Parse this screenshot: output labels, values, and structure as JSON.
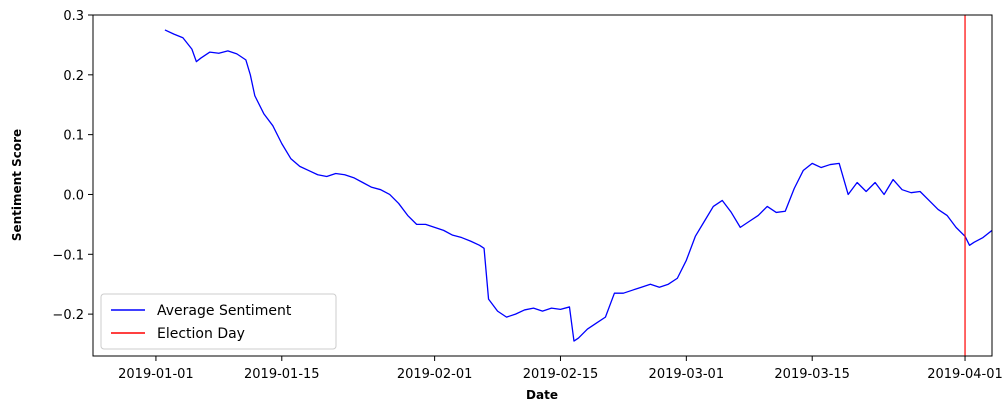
{
  "chart_data": {
    "type": "line",
    "title": "",
    "xlabel": "Date",
    "ylabel": "Sentiment Score",
    "xlim": [
      "2018-12-25",
      "2019-04-04"
    ],
    "ylim": [
      -0.27,
      0.3
    ],
    "x_ticks": [
      "2019-01-01",
      "2019-01-15",
      "2019-02-01",
      "2019-02-15",
      "2019-03-01",
      "2019-03-15",
      "2019-04-01"
    ],
    "y_ticks": [
      -0.2,
      -0.1,
      0.0,
      0.1,
      0.2,
      0.3
    ],
    "y_tick_labels": [
      "−0.2",
      "−0.1",
      "0.0",
      "0.1",
      "0.2",
      "0.3"
    ],
    "grid": false,
    "legend_position": "lower-left",
    "series": [
      {
        "name": "Average Sentiment",
        "color": "#0000ff",
        "points": [
          [
            "2019-01-02",
            0.275
          ],
          [
            "2019-01-03",
            0.268
          ],
          [
            "2019-01-04",
            0.262
          ],
          [
            "2019-01-05",
            0.243
          ],
          [
            "2019-01-05T12:00",
            0.222
          ],
          [
            "2019-01-06",
            0.228
          ],
          [
            "2019-01-07",
            0.238
          ],
          [
            "2019-01-08",
            0.236
          ],
          [
            "2019-01-09",
            0.24
          ],
          [
            "2019-01-10",
            0.235
          ],
          [
            "2019-01-11",
            0.225
          ],
          [
            "2019-01-11T12:00",
            0.2
          ],
          [
            "2019-01-12",
            0.165
          ],
          [
            "2019-01-13",
            0.135
          ],
          [
            "2019-01-14",
            0.115
          ],
          [
            "2019-01-15",
            0.085
          ],
          [
            "2019-01-16",
            0.06
          ],
          [
            "2019-01-17",
            0.047
          ],
          [
            "2019-01-18",
            0.04
          ],
          [
            "2019-01-19",
            0.033
          ],
          [
            "2019-01-20",
            0.03
          ],
          [
            "2019-01-21",
            0.035
          ],
          [
            "2019-01-22",
            0.033
          ],
          [
            "2019-01-23",
            0.028
          ],
          [
            "2019-01-24",
            0.02
          ],
          [
            "2019-01-25",
            0.012
          ],
          [
            "2019-01-26",
            0.008
          ],
          [
            "2019-01-27",
            0.0
          ],
          [
            "2019-01-28",
            -0.015
          ],
          [
            "2019-01-29",
            -0.035
          ],
          [
            "2019-01-30",
            -0.05
          ],
          [
            "2019-01-31",
            -0.05
          ],
          [
            "2019-02-01",
            -0.055
          ],
          [
            "2019-02-02",
            -0.06
          ],
          [
            "2019-02-03",
            -0.068
          ],
          [
            "2019-02-04",
            -0.072
          ],
          [
            "2019-02-05",
            -0.078
          ],
          [
            "2019-02-06",
            -0.085
          ],
          [
            "2019-02-06T12:00",
            -0.09
          ],
          [
            "2019-02-07",
            -0.175
          ],
          [
            "2019-02-08",
            -0.195
          ],
          [
            "2019-02-09",
            -0.205
          ],
          [
            "2019-02-10",
            -0.2
          ],
          [
            "2019-02-11",
            -0.193
          ],
          [
            "2019-02-12",
            -0.19
          ],
          [
            "2019-02-13",
            -0.195
          ],
          [
            "2019-02-14",
            -0.19
          ],
          [
            "2019-02-15",
            -0.192
          ],
          [
            "2019-02-16",
            -0.188
          ],
          [
            "2019-02-16T12:00",
            -0.245
          ],
          [
            "2019-02-17",
            -0.24
          ],
          [
            "2019-02-18",
            -0.225
          ],
          [
            "2019-02-19",
            -0.215
          ],
          [
            "2019-02-20",
            -0.205
          ],
          [
            "2019-02-21",
            -0.165
          ],
          [
            "2019-02-22",
            -0.165
          ],
          [
            "2019-02-23",
            -0.16
          ],
          [
            "2019-02-24",
            -0.155
          ],
          [
            "2019-02-25",
            -0.15
          ],
          [
            "2019-02-26",
            -0.155
          ],
          [
            "2019-02-27",
            -0.15
          ],
          [
            "2019-02-28",
            -0.14
          ],
          [
            "2019-03-01",
            -0.11
          ],
          [
            "2019-03-02",
            -0.07
          ],
          [
            "2019-03-03",
            -0.045
          ],
          [
            "2019-03-04",
            -0.02
          ],
          [
            "2019-03-05",
            -0.01
          ],
          [
            "2019-03-06",
            -0.03
          ],
          [
            "2019-03-07",
            -0.055
          ],
          [
            "2019-03-08",
            -0.045
          ],
          [
            "2019-03-09",
            -0.035
          ],
          [
            "2019-03-10",
            -0.02
          ],
          [
            "2019-03-11",
            -0.03
          ],
          [
            "2019-03-12",
            -0.028
          ],
          [
            "2019-03-13",
            0.01
          ],
          [
            "2019-03-14",
            0.04
          ],
          [
            "2019-03-15",
            0.052
          ],
          [
            "2019-03-16",
            0.045
          ],
          [
            "2019-03-17",
            0.05
          ],
          [
            "2019-03-18",
            0.052
          ],
          [
            "2019-03-19",
            0.0
          ],
          [
            "2019-03-20",
            0.02
          ],
          [
            "2019-03-21",
            0.005
          ],
          [
            "2019-03-22",
            0.02
          ],
          [
            "2019-03-23",
            0.0
          ],
          [
            "2019-03-24",
            0.025
          ],
          [
            "2019-03-25",
            0.008
          ],
          [
            "2019-03-26",
            0.003
          ],
          [
            "2019-03-27",
            0.005
          ],
          [
            "2019-03-28",
            -0.01
          ],
          [
            "2019-03-29",
            -0.025
          ],
          [
            "2019-03-30",
            -0.035
          ],
          [
            "2019-03-31",
            -0.055
          ],
          [
            "2019-04-01",
            -0.07
          ],
          [
            "2019-04-01T12:00",
            -0.085
          ],
          [
            "2019-04-02",
            -0.08
          ],
          [
            "2019-04-03",
            -0.072
          ],
          [
            "2019-04-04",
            -0.06
          ]
        ]
      },
      {
        "name": "Election Day",
        "color": "#ff0000"
      }
    ]
  }
}
